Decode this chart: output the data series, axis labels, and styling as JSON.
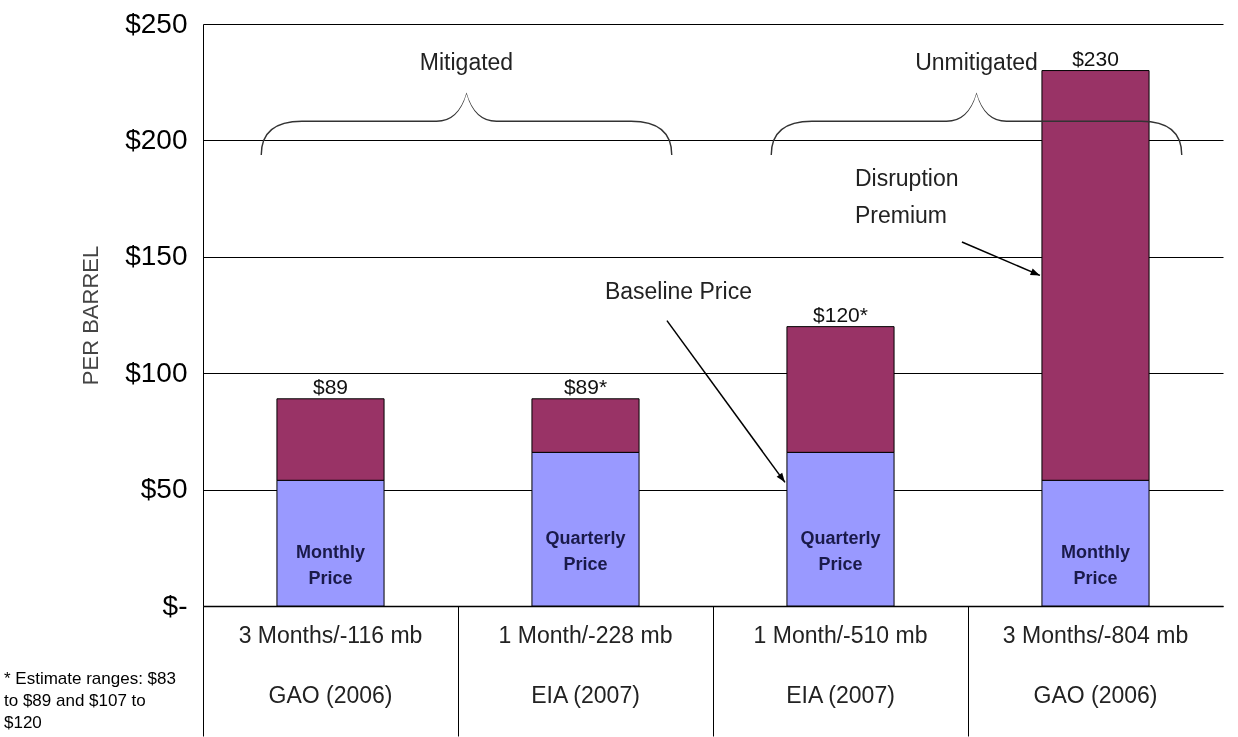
{
  "chart_data": {
    "type": "bar",
    "ylabel": "PER BARREL",
    "stacked": true,
    "grid": "y",
    "legend": false,
    "categories": [
      "3 Months/-116 mb\nGAO (2006)",
      "1 Month/-228 mb\nEIA (2007)",
      "1 Month/-510 mb\nEIA (2007)",
      "3 Months/-804 mb\nGAO (2006)"
    ],
    "series": [
      {
        "name": "Baseline Price",
        "color": "#9999ff",
        "values": [
          54,
          66,
          66,
          54
        ]
      },
      {
        "name": "Disruption Premium",
        "color": "#993366",
        "values": [
          35,
          23,
          54,
          176
        ]
      }
    ],
    "totals": [
      "$89",
      "$89*",
      "$120*",
      "$230"
    ],
    "ylim": [
      0,
      250
    ],
    "yticks": [
      {
        "value": 0,
        "label": "$-"
      },
      {
        "value": 50,
        "label": "$50"
      },
      {
        "value": 100,
        "label": "$100"
      },
      {
        "value": 150,
        "label": "$150"
      },
      {
        "value": 200,
        "label": "$200"
      },
      {
        "value": 250,
        "label": "$250"
      }
    ],
    "annotations": [
      "Mitigated",
      "Unmitigated",
      "Monthly Price",
      "Quarterly Price",
      "Quarterly Price",
      "Monthly Price",
      "* Estimate ranges: $83 to $89 and $107 to $120"
    ]
  }
}
